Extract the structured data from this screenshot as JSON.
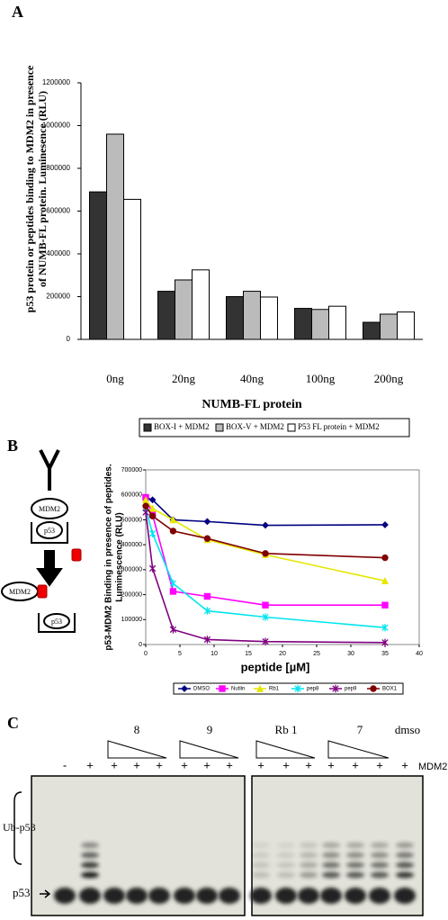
{
  "panel_labels": [
    "A",
    "B",
    "C"
  ],
  "chart_data": [
    {
      "type": "bar",
      "ylabel": [
        "p53 protein or peptides binding to MDM2 in presence",
        "of NUMB-FL protein. Luminesence (RLU)"
      ],
      "xlabel": "NUMB-FL protein",
      "categories": [
        "0ng",
        "20ng",
        "40ng",
        "100ng",
        "200ng"
      ],
      "series": [
        {
          "name": "BOX-I + MDM2",
          "color": "#333333",
          "values": [
            690000,
            225000,
            200000,
            145000,
            80000
          ]
        },
        {
          "name": "BOX-V + MDM2",
          "color": "#bbbbbb",
          "values": [
            960000,
            278000,
            225000,
            140000,
            118000
          ]
        },
        {
          "name": "P53 FL protein + MDM2",
          "color": "#ffffff",
          "values": [
            655000,
            325000,
            198000,
            155000,
            128000
          ]
        }
      ],
      "ylim": [
        0,
        1200000
      ],
      "yticks": [
        0,
        200000,
        400000,
        600000,
        800000,
        1000000,
        1200000
      ],
      "legend": "bottom"
    },
    {
      "type": "line",
      "ylabel": [
        "p53-MDM2 Binding in presence of peptides.",
        "Luminescence (RLU)"
      ],
      "xlabel": "peptide [µM]",
      "x": [
        0,
        1,
        4,
        9,
        17.5,
        35
      ],
      "series": [
        {
          "name": "DMSO",
          "color": "#000080",
          "marker": "diamond",
          "values": [
            590000,
            580000,
            500000,
            493000,
            478000,
            480000
          ]
        },
        {
          "name": "Nutlin",
          "color": "#ff00ff",
          "marker": "square",
          "values": [
            590000,
            520000,
            213000,
            193000,
            158000,
            158000
          ]
        },
        {
          "name": "Rb1",
          "color": "#e6e600",
          "marker": "triangle",
          "values": [
            580000,
            545000,
            500000,
            420000,
            360000,
            255000
          ]
        },
        {
          "name": "pep8",
          "color": "#00e5ee",
          "marker": "star",
          "values": [
            545000,
            445000,
            245000,
            135000,
            110000,
            68000
          ]
        },
        {
          "name": "pep9",
          "color": "#800080",
          "marker": "star",
          "values": [
            530000,
            305000,
            60000,
            20000,
            12000,
            8000
          ]
        },
        {
          "name": "BOX1",
          "color": "#800000",
          "marker": "circle",
          "values": [
            555000,
            515000,
            455000,
            425000,
            365000,
            348000
          ]
        }
      ],
      "xlim": [
        0,
        40
      ],
      "xticks": [
        0,
        5,
        10,
        15,
        20,
        25,
        30,
        35,
        40
      ],
      "ylim": [
        0,
        700000
      ],
      "yticks": [
        0,
        100000,
        200000,
        300000,
        400000,
        500000,
        600000,
        700000
      ],
      "legend": "bottom"
    }
  ],
  "schematic": {
    "labels": [
      "MDM2",
      "p53",
      "MDM2",
      "p53"
    ]
  },
  "gel": {
    "groups": [
      "8",
      "9",
      "Rb 1",
      "7",
      "dmso"
    ],
    "lanes": [
      "-",
      "+",
      "+",
      "+",
      "+",
      "+",
      "+",
      "+",
      "+",
      "+",
      "+",
      "+",
      "+",
      "+",
      "+"
    ],
    "marker": "MDM2",
    "labels": [
      "Ub-p53",
      "p53"
    ]
  }
}
